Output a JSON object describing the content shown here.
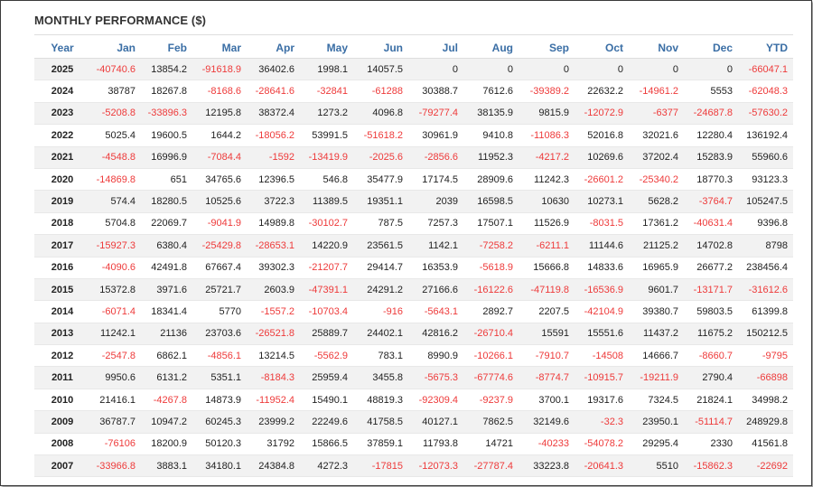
{
  "title": "MONTHLY PERFORMANCE ($)",
  "colors": {
    "header": "#3a6ea5",
    "negative": "#ee3a3a",
    "stripe": "#f2f2f2"
  },
  "columns": [
    "Year",
    "Jan",
    "Feb",
    "Mar",
    "Apr",
    "May",
    "Jun",
    "Jul",
    "Aug",
    "Sep",
    "Oct",
    "Nov",
    "Dec",
    "YTD"
  ],
  "rows": [
    [
      "2025",
      "-40740.6",
      "13854.2",
      "-91618.9",
      "36402.6",
      "1998.1",
      "14057.5",
      "0",
      "0",
      "0",
      "0",
      "0",
      "0",
      "-66047.1"
    ],
    [
      "2024",
      "38787",
      "18267.8",
      "-8168.6",
      "-28641.6",
      "-32841",
      "-61288",
      "30388.7",
      "7612.6",
      "-39389.2",
      "22632.2",
      "-14961.2",
      "5553",
      "-62048.3"
    ],
    [
      "2023",
      "-5208.8",
      "-33896.3",
      "12195.8",
      "38372.4",
      "1273.2",
      "4096.8",
      "-79277.4",
      "38135.9",
      "9815.9",
      "-12072.9",
      "-6377",
      "-24687.8",
      "-57630.2"
    ],
    [
      "2022",
      "5025.4",
      "19600.5",
      "1644.2",
      "-18056.2",
      "53991.5",
      "-51618.2",
      "30961.9",
      "9410.8",
      "-11086.3",
      "52016.8",
      "32021.6",
      "12280.4",
      "136192.4"
    ],
    [
      "2021",
      "-4548.8",
      "16996.9",
      "-7084.4",
      "-1592",
      "-13419.9",
      "-2025.6",
      "-2856.6",
      "11952.3",
      "-4217.2",
      "10269.6",
      "37202.4",
      "15283.9",
      "55960.6"
    ],
    [
      "2020",
      "-14869.8",
      "651",
      "34765.6",
      "12396.5",
      "546.8",
      "35477.9",
      "17174.5",
      "28909.6",
      "11242.3",
      "-26601.2",
      "-25340.2",
      "18770.3",
      "93123.3"
    ],
    [
      "2019",
      "574.4",
      "18280.5",
      "10525.6",
      "3722.3",
      "11389.5",
      "19351.1",
      "2039",
      "16598.5",
      "10630",
      "10273.1",
      "5628.2",
      "-3764.7",
      "105247.5"
    ],
    [
      "2018",
      "5704.8",
      "22069.7",
      "-9041.9",
      "14989.8",
      "-30102.7",
      "787.5",
      "7257.3",
      "17507.1",
      "11526.9",
      "-8031.5",
      "17361.2",
      "-40631.4",
      "9396.8"
    ],
    [
      "2017",
      "-15927.3",
      "6380.4",
      "-25429.8",
      "-28653.1",
      "14220.9",
      "23561.5",
      "1142.1",
      "-7258.2",
      "-6211.1",
      "11144.6",
      "21125.2",
      "14702.8",
      "8798"
    ],
    [
      "2016",
      "-4090.6",
      "42491.8",
      "67667.4",
      "39302.3",
      "-21207.7",
      "29414.7",
      "16353.9",
      "-5618.9",
      "15666.8",
      "14833.6",
      "16965.9",
      "26677.2",
      "238456.4"
    ],
    [
      "2015",
      "15372.8",
      "3971.6",
      "25721.7",
      "2603.9",
      "-47391.1",
      "24291.2",
      "27166.6",
      "-16122.6",
      "-47119.8",
      "-16536.9",
      "9601.7",
      "-13171.7",
      "-31612.6"
    ],
    [
      "2014",
      "-6071.4",
      "18341.4",
      "5770",
      "-1557.2",
      "-10703.4",
      "-916",
      "-5643.1",
      "2892.7",
      "2207.5",
      "-42104.9",
      "39380.7",
      "59803.5",
      "61399.8"
    ],
    [
      "2013",
      "11242.1",
      "21136",
      "23703.6",
      "-26521.8",
      "25889.7",
      "24402.1",
      "42816.2",
      "-26710.4",
      "15591",
      "15551.6",
      "11437.2",
      "11675.2",
      "150212.5"
    ],
    [
      "2012",
      "-2547.8",
      "6862.1",
      "-4856.1",
      "13214.5",
      "-5562.9",
      "783.1",
      "8990.9",
      "-10266.1",
      "-7910.7",
      "-14508",
      "14666.7",
      "-8660.7",
      "-9795"
    ],
    [
      "2011",
      "9950.6",
      "6131.2",
      "5351.1",
      "-8184.3",
      "25959.4",
      "3455.8",
      "-5675.3",
      "-67774.6",
      "-8774.7",
      "-10915.7",
      "-19211.9",
      "2790.4",
      "-66898"
    ],
    [
      "2010",
      "21416.1",
      "-4267.8",
      "14873.9",
      "-11952.4",
      "15490.1",
      "48819.3",
      "-92309.4",
      "-9237.9",
      "3700.1",
      "19317.6",
      "7324.5",
      "21824.1",
      "34998.2"
    ],
    [
      "2009",
      "36787.7",
      "10947.2",
      "60245.3",
      "23999.2",
      "22249.6",
      "41758.5",
      "40127.1",
      "7862.5",
      "32149.6",
      "-32.3",
      "23950.1",
      "-51114.7",
      "248929.8"
    ],
    [
      "2008",
      "-76106",
      "18200.9",
      "50120.3",
      "31792",
      "15866.5",
      "37859.1",
      "11793.8",
      "14721",
      "-40233",
      "-54078.2",
      "29295.4",
      "2330",
      "41561.8"
    ],
    [
      "2007",
      "-33966.8",
      "3883.1",
      "34180.1",
      "24384.8",
      "4272.3",
      "-17815",
      "-12073.3",
      "-27787.4",
      "33223.8",
      "-20641.3",
      "5510",
      "-15862.3",
      "-22692"
    ]
  ]
}
